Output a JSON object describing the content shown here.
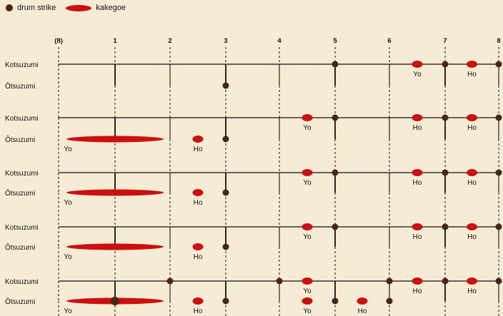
{
  "legend": {
    "strike_label": "drum strike",
    "kakegoe_label": "kakegoe",
    "strike_icon": "dark-brown-circle",
    "kakegoe_icon": "red-oval"
  },
  "colors": {
    "background": "#f6ebd4",
    "strike": "#4a2415",
    "kakegoe": "#cc0f0f",
    "line": "#111111"
  },
  "beat_labels": [
    "(8)",
    "1",
    "2",
    "3",
    "4",
    "5",
    "6",
    "7",
    "8"
  ],
  "track_labels": {
    "kotsuzumi": "Kotsuzumi",
    "otsuzumi": "Ôtsuzumi"
  },
  "patterns": [
    {
      "kotsuzumi_strikes": [
        5,
        7,
        8
      ],
      "kotsuzumi_kakegoe": [
        {
          "beat": 6.5,
          "label": "Yo"
        },
        {
          "beat": 7.5,
          "label": "Ho"
        }
      ],
      "otsuzumi_strikes": [
        3
      ],
      "otsuzumi_kakegoe": []
    },
    {
      "kotsuzumi_strikes": [
        5,
        7,
        8
      ],
      "kotsuzumi_kakegoe": [
        {
          "beat": 4.5,
          "label": "Yo"
        },
        {
          "beat": 6.5,
          "label": "Ho"
        },
        {
          "beat": 7.5,
          "label": "Ho"
        }
      ],
      "otsuzumi_strikes": [
        3
      ],
      "otsuzumi_kakegoe": [
        {
          "beat": 1,
          "long": true,
          "label": "Yo"
        },
        {
          "beat": 2.5,
          "label": "Ho"
        }
      ]
    },
    {
      "kotsuzumi_strikes": [
        5,
        7,
        8
      ],
      "kotsuzumi_kakegoe": [
        {
          "beat": 4.5,
          "label": "Yo"
        },
        {
          "beat": 6.5,
          "label": "Ho"
        },
        {
          "beat": 7.5,
          "label": "Ho"
        }
      ],
      "otsuzumi_strikes": [
        3
      ],
      "otsuzumi_kakegoe": [
        {
          "beat": 1,
          "long": true,
          "label": "Yo"
        },
        {
          "beat": 2.5,
          "label": "Ho"
        }
      ]
    },
    {
      "kotsuzumi_strikes": [
        5,
        7,
        8
      ],
      "kotsuzumi_kakegoe": [
        {
          "beat": 4.5,
          "label": "Yo"
        },
        {
          "beat": 6.5,
          "label": "Ho"
        },
        {
          "beat": 7.5,
          "label": "Ho"
        }
      ],
      "otsuzumi_strikes": [
        3
      ],
      "otsuzumi_kakegoe": [
        {
          "beat": 1,
          "long": true,
          "label": "Yo"
        },
        {
          "beat": 2.5,
          "label": "Ho"
        }
      ]
    },
    {
      "kotsuzumi_strikes": [
        2,
        4,
        6,
        7,
        8
      ],
      "kotsuzumi_kakegoe": [
        {
          "beat": 4.5,
          "label": "Yo"
        },
        {
          "beat": 6.5,
          "label": "Ho"
        },
        {
          "beat": 7.5,
          "label": "Ho"
        }
      ],
      "otsuzumi_strikes": [
        1,
        3,
        5,
        6
      ],
      "otsuzumi_kakegoe": [
        {
          "beat": 1,
          "long": true,
          "label": "Yo"
        },
        {
          "beat": 2.5,
          "label": "Ho"
        },
        {
          "beat": 4.5,
          "label": "Yo"
        },
        {
          "beat": 5.5,
          "label": "Ho"
        }
      ]
    }
  ]
}
